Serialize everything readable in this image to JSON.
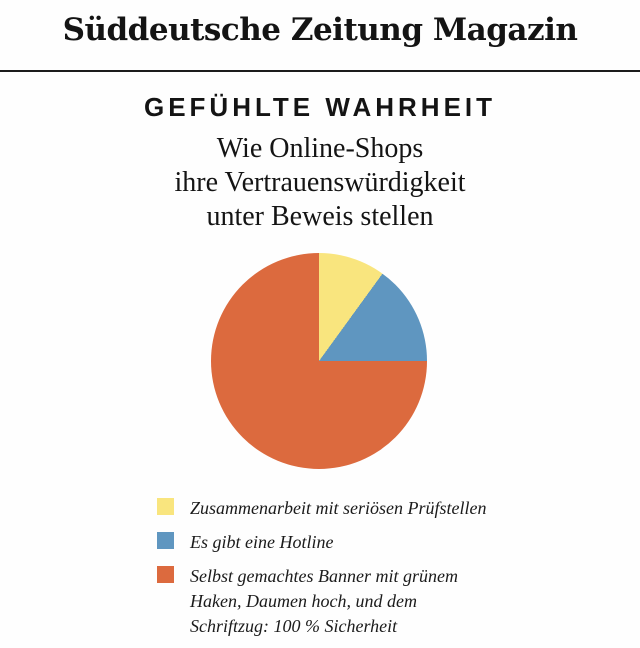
{
  "header": {
    "logo_text": "Süddeutsche Zeitung Magazin"
  },
  "article": {
    "kicker": "GEFÜHLTE WAHRHEIT",
    "subtitle_lines": [
      "Wie Online-Shops",
      "ihre Vertrauenswürdigkeit",
      "unter Beweis stellen"
    ]
  },
  "chart_data": {
    "type": "pie",
    "title": "GEFÜHLTE WAHRHEIT",
    "subtitle": "Wie Online-Shops ihre Vertrauenswürdigkeit unter Beweis stellen",
    "start_angle_deg": 0,
    "direction": "clockwise",
    "values_unit": "percent",
    "legend_position": "bottom-left",
    "slices": [
      {
        "label": "Zusammenarbeit mit seriösen Prüfstellen",
        "value": 10,
        "color": "#F9E57E"
      },
      {
        "label": "Es gibt eine Hotline",
        "value": 15,
        "color": "#5F96C0"
      },
      {
        "label": "Selbst gemachtes Banner mit grünem Haken, Daumen hoch, und dem Schriftzug: 100 % Sicherheit",
        "value": 75,
        "color": "#DC6A3E"
      }
    ]
  }
}
